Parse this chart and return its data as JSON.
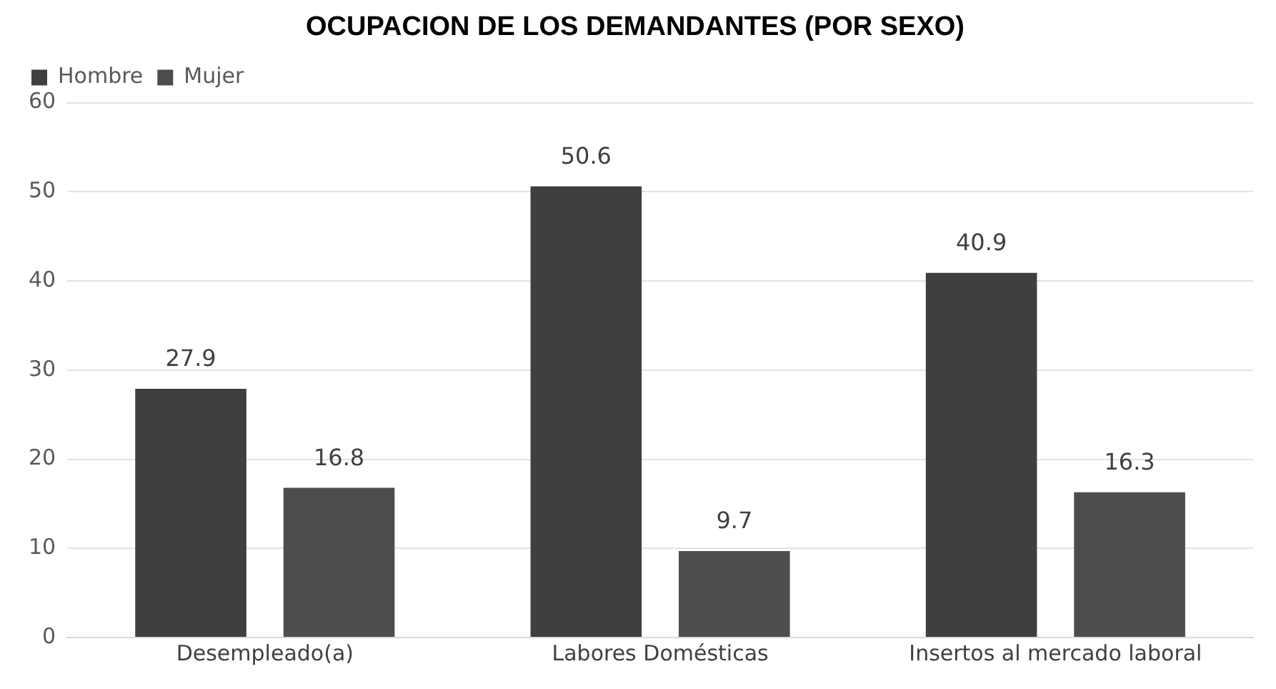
{
  "chart_data": {
    "type": "bar",
    "title": "OCUPACION DE LOS DEMANDANTES (POR SEXO)",
    "categories": [
      "Desempleado(a)",
      "Labores Domésticas",
      "Insertos al mercado laboral"
    ],
    "series": [
      {
        "name": "Hombre",
        "color": "#3f3f3f",
        "values": [
          27.9,
          50.6,
          40.9
        ]
      },
      {
        "name": "Mujer",
        "color": "#4d4d4d",
        "values": [
          16.8,
          9.7,
          16.3
        ]
      }
    ],
    "ylim": [
      0,
      60
    ],
    "yticks": [
      0,
      10,
      20,
      30,
      40,
      50,
      60
    ],
    "grid": "y",
    "legend": "top left",
    "data_labels": true
  }
}
